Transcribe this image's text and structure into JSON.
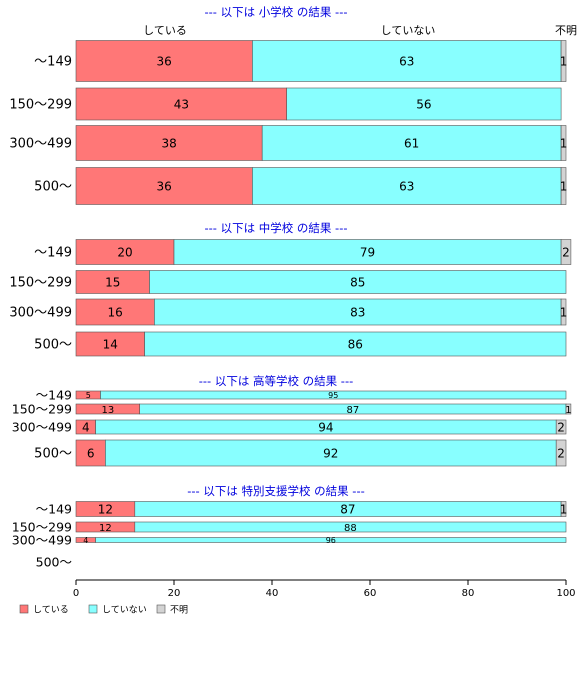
{
  "chart_data": {
    "type": "bar",
    "orientation": "horizontal-stacked-percent",
    "top_labels": [
      "している",
      "していない",
      "不明"
    ],
    "legend": {
      "placement": "bottom-left",
      "items": [
        {
          "label": "している",
          "color": "#ff7777"
        },
        {
          "label": "していない",
          "color": "#88ffff"
        },
        {
          "label": "不明",
          "color": "#d3d3d3"
        }
      ]
    },
    "xlim": [
      0,
      100
    ],
    "xticks": [
      "0",
      "20",
      "40",
      "60",
      "80",
      "100"
    ],
    "series_colors": [
      "#ff7777",
      "#88ffff",
      "#d3d3d3"
    ],
    "groups": [
      {
        "title": "--- 以下は 小学校 の結果 ---",
        "rows": [
          {
            "category": "〜149",
            "values": [
              36,
              63,
              1
            ]
          },
          {
            "category": "150〜299",
            "values": [
              43,
              56,
              0
            ]
          },
          {
            "category": "300〜499",
            "values": [
              38,
              61,
              1
            ]
          },
          {
            "category": "500〜",
            "values": [
              36,
              63,
              1
            ]
          }
        ]
      },
      {
        "title": "--- 以下は 中学校 の結果 ---",
        "rows": [
          {
            "category": "〜149",
            "values": [
              20,
              79,
              2
            ]
          },
          {
            "category": "150〜299",
            "values": [
              15,
              85,
              0
            ]
          },
          {
            "category": "300〜499",
            "values": [
              16,
              83,
              1
            ]
          },
          {
            "category": "500〜",
            "values": [
              14,
              86,
              0
            ]
          }
        ]
      },
      {
        "title": "--- 以下は 高等学校 の結果 ---",
        "rows": [
          {
            "category": "〜149",
            "values": [
              5,
              95,
              0
            ]
          },
          {
            "category": "150〜299",
            "values": [
              13,
              87,
              1
            ]
          },
          {
            "category": "300〜499",
            "values": [
              4,
              94,
              2
            ]
          },
          {
            "category": "500〜",
            "values": [
              6,
              92,
              2
            ]
          }
        ]
      },
      {
        "title": "--- 以下は 特別支援学校 の結果 ---",
        "rows": [
          {
            "category": "〜149",
            "values": [
              12,
              87,
              1
            ]
          },
          {
            "category": "150〜299",
            "values": [
              12,
              88,
              0
            ]
          },
          {
            "category": "300〜499",
            "values": [
              4,
              96,
              0
            ]
          },
          {
            "category": "500〜",
            "values": null
          }
        ]
      }
    ]
  }
}
